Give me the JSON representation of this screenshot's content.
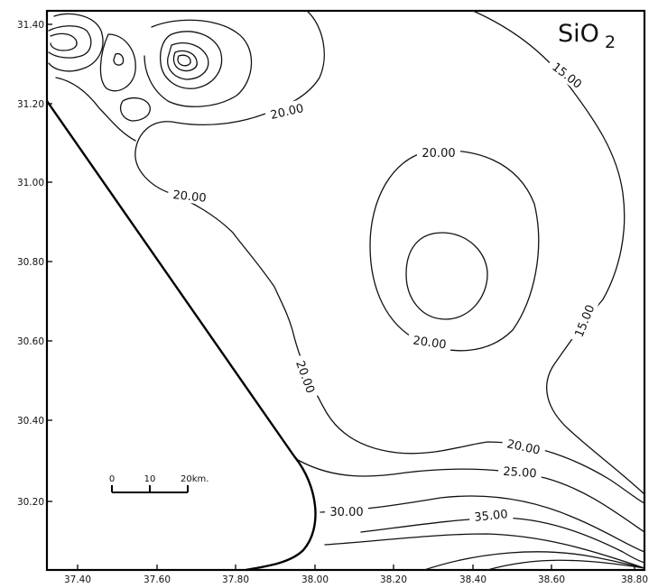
{
  "map": {
    "title_main": "SiO",
    "title_sub": "2",
    "y_tick_labels": [
      "31.40",
      "31.20",
      "31.00",
      "30.80",
      "30.60",
      "30.40",
      "30.20"
    ],
    "x_tick_labels": [
      "37.40",
      "37.60",
      "37.80",
      "38.00",
      "38.20",
      "38.40",
      "38.60",
      "38.80"
    ],
    "scale_bar": {
      "labels": [
        "0",
        "10",
        "20km."
      ]
    },
    "contour_labels": {
      "l20_north": "20.00",
      "l15_upper": "15.00",
      "l20_ring_top": "20.00",
      "l20_west": "20.00",
      "l15_lower": "15.00",
      "l20_ring_bottom": "20.00",
      "l20_diag": "20.00",
      "l20_south": "20.00",
      "l25": "25.00",
      "l30": "30.00",
      "l35": "35.00"
    }
  }
}
